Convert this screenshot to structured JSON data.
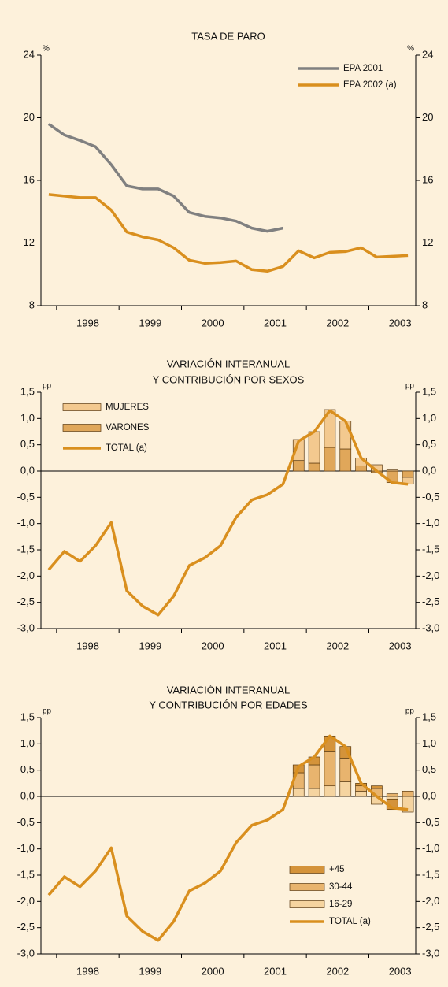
{
  "chart_data": [
    {
      "type": "line",
      "title": [
        "TASA DE PARO"
      ],
      "unit": "%",
      "year_labels": [
        "1998",
        "1999",
        "2000",
        "2001",
        "2002",
        "2003"
      ],
      "ylim": [
        8,
        24
      ],
      "yticks": [
        8,
        12,
        16,
        20,
        24
      ],
      "series": [
        {
          "name": "EPA 2001",
          "type": "line",
          "color": "#808080",
          "values": [
            19.6,
            18.9,
            18.55,
            18.15,
            17.0,
            15.65,
            15.45,
            15.45,
            15.0,
            13.95,
            13.7,
            13.6,
            13.4,
            12.95,
            12.75,
            12.95,
            null,
            null,
            null,
            null,
            null,
            null,
            null,
            null
          ]
        },
        {
          "name": "EPA 2002 (a)",
          "type": "line",
          "color": "#d98f1e",
          "values": [
            15.1,
            15.0,
            14.9,
            14.9,
            14.1,
            12.7,
            12.4,
            12.2,
            11.7,
            10.9,
            10.7,
            10.75,
            10.85,
            10.3,
            10.2,
            10.5,
            11.5,
            11.05,
            11.4,
            11.45,
            11.7,
            11.1,
            11.15,
            11.2
          ]
        }
      ]
    },
    {
      "type": "combo",
      "title": [
        "VARIACIÓN INTERANUAL",
        "Y CONTRIBUCIÓN POR SEXOS"
      ],
      "unit": "pp",
      "year_labels": [
        "1998",
        "1999",
        "2000",
        "2001",
        "2002",
        "2003"
      ],
      "ylim": [
        -3,
        1.5
      ],
      "yticks": [
        {
          "value": -3,
          "label": "-3,0"
        },
        {
          "value": -2.5,
          "label": "-2,5"
        },
        {
          "value": -2,
          "label": "-2,0"
        },
        {
          "value": -1.5,
          "label": "-1,5"
        },
        {
          "value": -1,
          "label": "-1,0"
        },
        {
          "value": -0.5,
          "label": "-0,5"
        },
        {
          "value": 0,
          "label": "0,0"
        },
        {
          "value": 0.5,
          "label": "0,5"
        },
        {
          "value": 1,
          "label": "1,0"
        },
        {
          "value": 1.5,
          "label": "1,5"
        }
      ],
      "series": [
        {
          "name": "MUJERES",
          "type": "bar",
          "color": "#f3c98f",
          "values": [
            null,
            null,
            null,
            null,
            null,
            null,
            null,
            null,
            null,
            null,
            null,
            null,
            null,
            null,
            null,
            null,
            0.4,
            0.6,
            0.72,
            0.53,
            0.15,
            0.12,
            0.02,
            -0.13
          ]
        },
        {
          "name": "VARONES",
          "type": "bar",
          "color": "#e0a75a",
          "values": [
            null,
            null,
            null,
            null,
            null,
            null,
            null,
            null,
            null,
            null,
            null,
            null,
            null,
            null,
            null,
            null,
            0.2,
            0.15,
            0.45,
            0.42,
            0.1,
            -0.03,
            -0.22,
            -0.12
          ]
        },
        {
          "name": "TOTAL (a)",
          "type": "line",
          "color": "#d98f1e",
          "values": [
            -1.88,
            -1.53,
            -1.72,
            -1.42,
            -0.98,
            -2.28,
            -2.57,
            -2.74,
            -2.38,
            -1.8,
            -1.65,
            -1.42,
            -0.88,
            -0.55,
            -0.45,
            -0.25,
            0.57,
            0.75,
            1.15,
            0.95,
            0.25,
            0.0,
            -0.22,
            -0.25
          ]
        }
      ]
    },
    {
      "type": "combo",
      "title": [
        "VARIACIÓN INTERANUAL",
        "Y CONTRIBUCIÓN POR EDADES"
      ],
      "unit": "pp",
      "year_labels": [
        "1998",
        "1999",
        "2000",
        "2001",
        "2002",
        "2003"
      ],
      "ylim": [
        -3,
        1.5
      ],
      "yticks": [
        {
          "value": -3,
          "label": "-3,0"
        },
        {
          "value": -2.5,
          "label": "-2,5"
        },
        {
          "value": -2,
          "label": "-2,0"
        },
        {
          "value": -1.5,
          "label": "-1,5"
        },
        {
          "value": -1,
          "label": "-1,0"
        },
        {
          "value": -0.5,
          "label": "-0,5"
        },
        {
          "value": 0,
          "label": "0,0"
        },
        {
          "value": 0.5,
          "label": "0,5"
        },
        {
          "value": 1,
          "label": "1,0"
        },
        {
          "value": 1.5,
          "label": "1,5"
        }
      ],
      "series": [
        {
          "name": "+45",
          "type": "bar",
          "color": "#d4933a",
          "values": [
            null,
            null,
            null,
            null,
            null,
            null,
            null,
            null,
            null,
            null,
            null,
            null,
            null,
            null,
            null,
            null,
            0.15,
            0.15,
            0.3,
            0.22,
            0.05,
            0.05,
            -0.2,
            0.0
          ]
        },
        {
          "name": "30-44",
          "type": "bar",
          "color": "#e8b46e",
          "values": [
            null,
            null,
            null,
            null,
            null,
            null,
            null,
            null,
            null,
            null,
            null,
            null,
            null,
            null,
            null,
            null,
            0.3,
            0.45,
            0.65,
            0.45,
            0.1,
            0.15,
            0.05,
            0.1
          ]
        },
        {
          "name": "16-29",
          "type": "bar",
          "color": "#f5d4a0",
          "values": [
            null,
            null,
            null,
            null,
            null,
            null,
            null,
            null,
            null,
            null,
            null,
            null,
            null,
            null,
            null,
            null,
            0.15,
            0.15,
            0.2,
            0.28,
            0.1,
            -0.15,
            -0.05,
            -0.3
          ]
        },
        {
          "name": "TOTAL (a)",
          "type": "line",
          "color": "#d98f1e",
          "values": [
            -1.88,
            -1.53,
            -1.72,
            -1.42,
            -0.98,
            -2.28,
            -2.57,
            -2.74,
            -2.38,
            -1.8,
            -1.65,
            -1.42,
            -0.88,
            -0.55,
            -0.45,
            -0.25,
            0.57,
            0.75,
            1.15,
            0.95,
            0.25,
            0.0,
            -0.22,
            -0.25
          ]
        }
      ]
    }
  ]
}
